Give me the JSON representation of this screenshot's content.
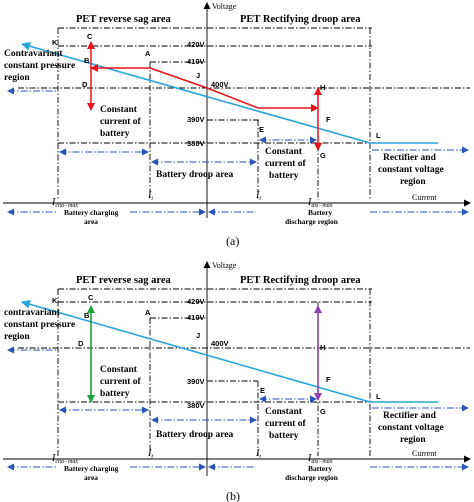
{
  "panel_a": {
    "axis_voltage": "Voltage",
    "axis_current": "Current",
    "header_left": "PET reverse sag area",
    "header_right": "PET Rectifying droop area",
    "v420": "420V",
    "v410": "410V",
    "v400": "400V",
    "v390": "390V",
    "v380": "380V",
    "pt_K": "K",
    "pt_C": "C",
    "pt_B": "B",
    "pt_A": "A",
    "pt_D": "D",
    "pt_J": "J",
    "pt_H": "H",
    "pt_E": "E",
    "pt_F": "F",
    "pt_G": "G",
    "pt_L": "L",
    "region_contravariant_1": "Contravariant",
    "region_contravariant_2": "constant pressure",
    "region_contravariant_3": "region",
    "region_cc_left_1": "Constant",
    "region_cc_left_2": "current of",
    "region_cc_left_3": "battery",
    "region_cc_right_1": "Constant",
    "region_cc_right_2": "current of",
    "region_cc_right_3": "battery",
    "region_droop": "Battery droop area",
    "region_rectifier_1": "Rectifier and",
    "region_rectifier_2": "constant voltage",
    "region_rectifier_3": "region",
    "i_cha": "I",
    "i_cha_sub": "cha−max",
    "i_t_left": "I",
    "i_t_left_sub": "t",
    "i_t_right": "I",
    "i_t_right_sub": "t",
    "i_dis": "I",
    "i_dis_sub": "dis−max",
    "area_charging_1": "Battery charging",
    "area_charging_2": "area",
    "area_discharge_1": "Battery",
    "area_discharge_2": "discharge region",
    "caption": "(a)"
  },
  "panel_b": {
    "axis_voltage": "Voltage",
    "axis_current": "Current",
    "header_left": "PET reverse sag area",
    "header_right": "PET Rectifying droop area",
    "v420": "420V",
    "v410": "410V",
    "v400": "400V",
    "v390": "390V",
    "v380": "380V",
    "pt_K": "K",
    "pt_C": "C",
    "pt_B": "B",
    "pt_A": "A",
    "pt_D": "D",
    "pt_J": "J",
    "pt_H": "H",
    "pt_E": "E",
    "pt_F": "F",
    "pt_G": "G",
    "pt_L": "L",
    "region_contravariant_1": "contravariant",
    "region_contravariant_2": "constant pressure",
    "region_contravariant_3": "region",
    "region_cc_left_1": "Constant",
    "region_cc_left_2": "current of",
    "region_cc_left_3": "battery",
    "region_cc_right_1": "Constant",
    "region_cc_right_2": "current of",
    "region_cc_right_3": "battery",
    "region_droop": "Battery droop area",
    "region_rectifier_1": "Rectifier and",
    "region_rectifier_2": "constant voltage",
    "region_rectifier_3": "region",
    "i_cha": "I",
    "i_cha_sub": "cha−max",
    "i_t_left": "I",
    "i_t_left_sub": "t",
    "i_t_right": "I",
    "i_t_right_sub": "t",
    "i_dis": "I",
    "i_dis_sub": "dis−max",
    "area_charging_1": "Battery charging",
    "area_charging_2": "area",
    "area_discharge_1": "Battery",
    "area_discharge_2": "discharge region",
    "caption": "(b)"
  },
  "colors": {
    "droop_line": "#29a3dc",
    "red_path": "#e8141b",
    "green_path": "#1ca33a",
    "purple_path": "#8e3fb5",
    "region_arrows": "#2a55b5"
  }
}
